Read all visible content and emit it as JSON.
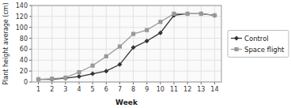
{
  "chart_data": {
    "type": "line",
    "x": [
      1,
      2,
      3,
      4,
      5,
      6,
      7,
      8,
      9,
      10,
      11,
      12,
      13,
      14
    ],
    "series": [
      {
        "name": "Control",
        "color": "#333333",
        "marker": "diamond",
        "values": [
          5,
          5,
          7,
          10,
          15,
          20,
          32,
          63,
          75,
          90,
          122,
          125,
          125,
          122
        ]
      },
      {
        "name": "Space flight",
        "color": "#999999",
        "marker": "square",
        "values": [
          5,
          6,
          8,
          18,
          30,
          47,
          65,
          88,
          95,
          110,
          125,
          125,
          125,
          122
        ]
      }
    ],
    "xlabel": "Week",
    "ylabel": "Plant height average (cm)",
    "xlim": [
      0.5,
      14.5
    ],
    "xticks": [
      1,
      2,
      3,
      4,
      5,
      6,
      7,
      8,
      9,
      10,
      11,
      12,
      13,
      14
    ],
    "ylim": [
      0,
      140
    ],
    "yticks": [
      0,
      20,
      40,
      60,
      80,
      100,
      120,
      140
    ],
    "grid": true,
    "legend": "right"
  }
}
